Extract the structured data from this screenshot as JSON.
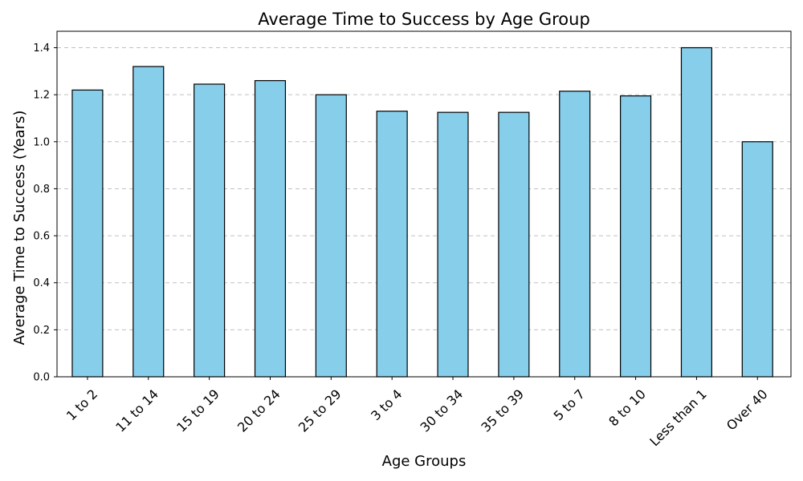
{
  "chart_data": {
    "type": "bar",
    "title": "Average Time to Success by Age Group",
    "xlabel": "Age Groups",
    "ylabel": "Average Time to Success (Years)",
    "categories": [
      "1 to 2",
      "11 to 14",
      "15 to 19",
      "20 to 24",
      "25 to 29",
      "3 to 4",
      "30 to 34",
      "35 to 39",
      "5 to 7",
      "8 to 10",
      "Less than 1",
      "Over 40"
    ],
    "values": [
      1.22,
      1.32,
      1.245,
      1.26,
      1.2,
      1.13,
      1.125,
      1.125,
      1.215,
      1.195,
      1.4,
      1.0
    ],
    "ylim": [
      0,
      1.47
    ],
    "yticks": [
      0.0,
      0.2,
      0.4,
      0.6,
      0.8,
      1.0,
      1.2,
      1.4
    ],
    "ytick_labels": [
      "0.0",
      "0.2",
      "0.4",
      "0.6",
      "0.8",
      "1.0",
      "1.2",
      "1.4"
    ],
    "grid": "y-dashed",
    "bar_color": "#87CEEB",
    "edge_color": "#000000",
    "grid_color": "#c0c0c0"
  }
}
